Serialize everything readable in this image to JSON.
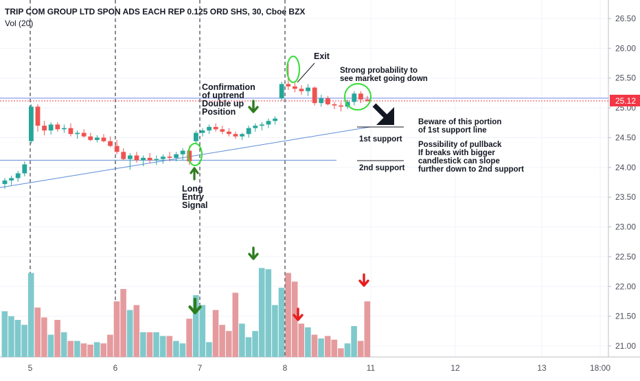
{
  "header": {
    "title": "TRIP COM GROUP LTD SPON ADS EACH REP 0.125 ORD SHS, 30, Cboe BZX",
    "indicator": "Vol (20)"
  },
  "price_badge": "25.12",
  "annotations": {
    "exit": "Exit",
    "strong_probability": [
      "Strong probability to",
      "see market going down"
    ],
    "confirmation": [
      "Confirmation",
      "of uptrend",
      "Double up",
      "Position"
    ],
    "long_entry": [
      "Long",
      "Entry",
      "Signal"
    ],
    "beware": [
      "Beware of this portion",
      "of 1st support line"
    ],
    "support1": "1st support",
    "pullback": [
      "Possibility of pullback",
      "If breaks with bigger",
      "candlestick can slope",
      "further down to 2nd support"
    ],
    "support2": "2nd support"
  },
  "colors": {
    "up": "#26a69a",
    "down": "#ef5350",
    "vol_up": "#7fc9cc",
    "vol_down": "#e59b9e",
    "trendline": "#5b8bd6",
    "ellipse": "#33dd33",
    "arrow_green": "#2e7d1e",
    "arrow_red": "#e81c1c",
    "badge": "#f23645"
  },
  "chart_data": {
    "type": "candlestick",
    "y_axis_ticks": [
      "26.50",
      "26.00",
      "25.50",
      "25.00",
      "24.50",
      "24.00",
      "23.50",
      "23.00",
      "22.50",
      "22.00",
      "21.50",
      "21.00"
    ],
    "x_axis_ticks": [
      "5",
      "6",
      "7",
      "8",
      "11",
      "12",
      "13",
      "18:00"
    ],
    "ylim": [
      20.9,
      26.6
    ],
    "last_price": 25.12,
    "candles": [
      {
        "o": 23.72,
        "h": 23.82,
        "l": 23.64,
        "c": 23.78
      },
      {
        "o": 23.78,
        "h": 23.86,
        "l": 23.7,
        "c": 23.82
      },
      {
        "o": 23.82,
        "h": 23.94,
        "l": 23.76,
        "c": 23.9
      },
      {
        "o": 23.9,
        "h": 24.1,
        "l": 23.85,
        "c": 24.05
      },
      {
        "o": 24.44,
        "h": 25.06,
        "l": 24.4,
        "c": 25.02
      },
      {
        "o": 25.02,
        "h": 25.06,
        "l": 24.6,
        "c": 24.7
      },
      {
        "o": 24.7,
        "h": 24.78,
        "l": 24.54,
        "c": 24.62
      },
      {
        "o": 24.62,
        "h": 24.76,
        "l": 24.55,
        "c": 24.72
      },
      {
        "o": 24.72,
        "h": 24.76,
        "l": 24.6,
        "c": 24.64
      },
      {
        "o": 24.64,
        "h": 24.72,
        "l": 24.58,
        "c": 24.66
      },
      {
        "o": 24.66,
        "h": 24.74,
        "l": 24.52,
        "c": 24.56
      },
      {
        "o": 24.56,
        "h": 24.62,
        "l": 24.48,
        "c": 24.58
      },
      {
        "o": 24.58,
        "h": 24.64,
        "l": 24.5,
        "c": 24.52
      },
      {
        "o": 24.52,
        "h": 24.58,
        "l": 24.44,
        "c": 24.46
      },
      {
        "o": 24.46,
        "h": 24.54,
        "l": 24.42,
        "c": 24.5
      },
      {
        "o": 24.5,
        "h": 24.56,
        "l": 24.42,
        "c": 24.44
      },
      {
        "o": 24.44,
        "h": 24.52,
        "l": 24.34,
        "c": 24.36
      },
      {
        "o": 24.36,
        "h": 24.46,
        "l": 24.22,
        "c": 24.26
      },
      {
        "o": 24.26,
        "h": 24.32,
        "l": 24.12,
        "c": 24.14
      },
      {
        "o": 24.14,
        "h": 24.24,
        "l": 23.96,
        "c": 24.2
      },
      {
        "o": 24.2,
        "h": 24.26,
        "l": 24.08,
        "c": 24.12
      },
      {
        "o": 24.12,
        "h": 24.2,
        "l": 24.02,
        "c": 24.16
      },
      {
        "o": 24.16,
        "h": 24.24,
        "l": 24.08,
        "c": 24.12
      },
      {
        "o": 24.12,
        "h": 24.2,
        "l": 24.04,
        "c": 24.14
      },
      {
        "o": 24.14,
        "h": 24.22,
        "l": 24.06,
        "c": 24.18
      },
      {
        "o": 24.18,
        "h": 24.26,
        "l": 24.1,
        "c": 24.16
      },
      {
        "o": 24.16,
        "h": 24.26,
        "l": 24.1,
        "c": 24.22
      },
      {
        "o": 24.22,
        "h": 24.32,
        "l": 24.12,
        "c": 24.28
      },
      {
        "o": 24.28,
        "h": 24.36,
        "l": 24.04,
        "c": 24.1
      },
      {
        "o": 24.44,
        "h": 24.62,
        "l": 24.4,
        "c": 24.58
      },
      {
        "o": 24.58,
        "h": 24.66,
        "l": 24.52,
        "c": 24.62
      },
      {
        "o": 24.62,
        "h": 24.72,
        "l": 24.56,
        "c": 24.68
      },
      {
        "o": 24.68,
        "h": 24.74,
        "l": 24.6,
        "c": 24.64
      },
      {
        "o": 24.64,
        "h": 24.7,
        "l": 24.56,
        "c": 24.6
      },
      {
        "o": 24.6,
        "h": 24.66,
        "l": 24.52,
        "c": 24.56
      },
      {
        "o": 24.56,
        "h": 24.6,
        "l": 24.48,
        "c": 24.52
      },
      {
        "o": 24.52,
        "h": 24.58,
        "l": 24.46,
        "c": 24.56
      },
      {
        "o": 24.56,
        "h": 24.7,
        "l": 24.5,
        "c": 24.66
      },
      {
        "o": 24.66,
        "h": 24.74,
        "l": 24.6,
        "c": 24.7
      },
      {
        "o": 24.7,
        "h": 24.76,
        "l": 24.62,
        "c": 24.72
      },
      {
        "o": 24.72,
        "h": 24.82,
        "l": 24.66,
        "c": 24.78
      },
      {
        "o": 24.78,
        "h": 24.86,
        "l": 24.72,
        "c": 24.82
      },
      {
        "o": 25.16,
        "h": 25.44,
        "l": 25.12,
        "c": 25.4
      },
      {
        "o": 25.4,
        "h": 25.74,
        "l": 25.3,
        "c": 25.36
      },
      {
        "o": 25.36,
        "h": 25.42,
        "l": 25.26,
        "c": 25.32
      },
      {
        "o": 25.32,
        "h": 25.38,
        "l": 25.22,
        "c": 25.28
      },
      {
        "o": 25.28,
        "h": 25.4,
        "l": 25.2,
        "c": 25.34
      },
      {
        "o": 25.34,
        "h": 25.36,
        "l": 25.04,
        "c": 25.08
      },
      {
        "o": 25.08,
        "h": 25.22,
        "l": 25.02,
        "c": 25.16
      },
      {
        "o": 25.16,
        "h": 25.2,
        "l": 25.04,
        "c": 25.06
      },
      {
        "o": 25.06,
        "h": 25.1,
        "l": 24.98,
        "c": 25.04
      },
      {
        "o": 25.04,
        "h": 25.1,
        "l": 24.94,
        "c": 25.02
      },
      {
        "o": 25.02,
        "h": 25.14,
        "l": 24.98,
        "c": 25.1
      },
      {
        "o": 25.1,
        "h": 25.28,
        "l": 25.04,
        "c": 25.24
      },
      {
        "o": 25.24,
        "h": 25.28,
        "l": 25.08,
        "c": 25.14
      },
      {
        "o": 25.14,
        "h": 25.2,
        "l": 25.1,
        "c": 25.12
      }
    ],
    "volume_ratio": [
      0.37,
      0.33,
      0.3,
      0.26,
      0.68,
      0.4,
      0.32,
      0.18,
      0.3,
      0.2,
      0.13,
      0.13,
      0.11,
      0.1,
      0.12,
      0.11,
      0.18,
      0.45,
      0.55,
      0.38,
      0.42,
      0.2,
      0.2,
      0.2,
      0.17,
      0.17,
      0.13,
      0.11,
      0.31,
      0.5,
      0.42,
      0.12,
      0.38,
      0.26,
      0.21,
      0.52,
      0.27,
      0.16,
      0.21,
      0.72,
      0.71,
      0.42,
      0.56,
      0.68,
      0.61,
      0.27,
      0.24,
      0.18,
      0.15,
      0.17,
      0.14,
      0.07,
      0.11,
      0.25,
      0.13,
      0.45
    ],
    "trendlines": [
      {
        "name": "1st support",
        "from": [
          0,
          23.66
        ],
        "to": [
          55.5,
          24.68
        ]
      },
      {
        "name": "2nd support",
        "price": 24.12
      }
    ]
  }
}
